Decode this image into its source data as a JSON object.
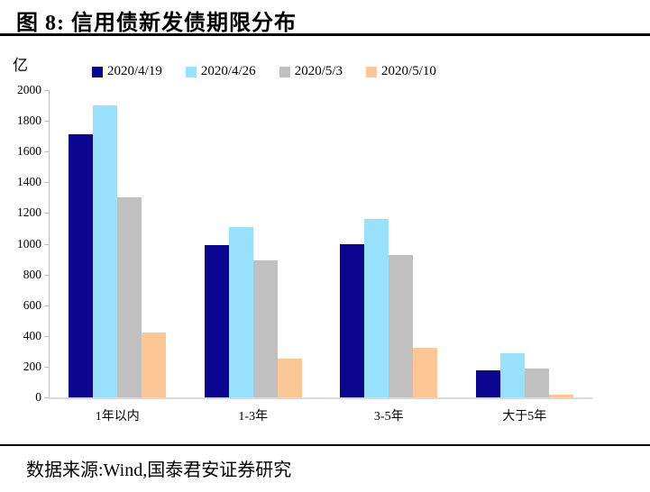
{
  "title": "图 8:  信用债新发债期限分布",
  "source": "数据来源:Wind,国泰君安证券研究",
  "chart_data": {
    "type": "bar",
    "title": "信用债新发债期限分布",
    "ylabel": "亿",
    "xlabel": "",
    "ylim": [
      0,
      2000
    ],
    "yticks": [
      0,
      200,
      400,
      600,
      800,
      1000,
      1200,
      1400,
      1600,
      1800,
      2000
    ],
    "grid": "off",
    "legend_position": "top",
    "categories": [
      "1年以内",
      "1-3年",
      "3-5年",
      "大于5年"
    ],
    "series": [
      {
        "name": "2020/4/19",
        "color": "#0B068F",
        "values": [
          1710,
          990,
          1000,
          175
        ]
      },
      {
        "name": "2020/4/26",
        "color": "#97E1FD",
        "values": [
          1900,
          1110,
          1160,
          290
        ]
      },
      {
        "name": "2020/5/3",
        "color": "#C0C0C0",
        "values": [
          1300,
          890,
          925,
          185
        ]
      },
      {
        "name": "2020/5/10",
        "color": "#FDC795",
        "values": [
          420,
          255,
          325,
          20
        ]
      }
    ]
  }
}
